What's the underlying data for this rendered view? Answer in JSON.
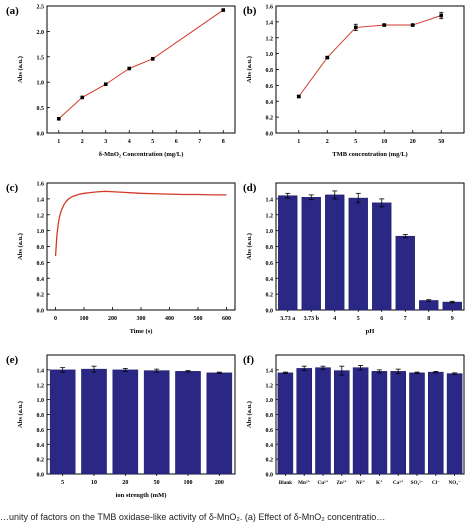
{
  "caption": "…unity of factors on the TMB oxidase-like activity of δ-MnO₂. (a) Effect of δ-MnO₂ concentratio…",
  "colors": {
    "line": "#d23b2a",
    "bar": "#2a2785",
    "axis": "#000000",
    "err": "#000000"
  },
  "chart_data": [
    {
      "panel": "(a)",
      "type": "line",
      "x": [
        1,
        2,
        3,
        4,
        5,
        8
      ],
      "values": [
        0.28,
        0.7,
        0.96,
        1.27,
        1.46,
        2.42
      ],
      "xlabel": "δ-MnO₂ Concentration (mg/L)",
      "ylabel": "Abs (a.u.)",
      "xticks": [
        "1",
        "2",
        "3",
        "4",
        "5",
        "6",
        "7",
        "8"
      ],
      "yticks": [
        "0.0",
        "0.5",
        "1.0",
        "1.5",
        "2.0",
        "2.5"
      ],
      "xlim": [
        0.5,
        8.5
      ],
      "ylim": [
        0,
        2.5
      ]
    },
    {
      "panel": "(b)",
      "type": "line",
      "categories": [
        "1",
        "2",
        "5",
        "10",
        "20",
        "50"
      ],
      "values": [
        0.46,
        0.95,
        1.33,
        1.36,
        1.36,
        1.48
      ],
      "errors": [
        0.01,
        0.01,
        0.04,
        0.01,
        0.01,
        0.04
      ],
      "xlabel": "TMB concentration (mg/L)",
      "ylabel": "Abs (a.u.)",
      "yticks": [
        "0.0",
        "0.2",
        "0.4",
        "0.6",
        "0.8",
        "1.0",
        "1.2",
        "1.4",
        "1.6"
      ],
      "ylim": [
        0,
        1.6
      ]
    },
    {
      "panel": "(c)",
      "type": "line",
      "xlabel": "Time (s)",
      "ylabel": "Abs (a.u.)",
      "xticks": [
        "0",
        "100",
        "200",
        "300",
        "400",
        "500",
        "600"
      ],
      "yticks": [
        "0.0",
        "0.2",
        "0.4",
        "0.6",
        "0.8",
        "1.0",
        "1.2",
        "1.4",
        "1.6"
      ],
      "xlim": [
        -30,
        630
      ],
      "ylim": [
        0,
        1.6
      ],
      "x": [
        0,
        5,
        10,
        15,
        20,
        30,
        40,
        50,
        60,
        80,
        100,
        125,
        150,
        175,
        200,
        250,
        300,
        350,
        400,
        450,
        500,
        550,
        600
      ],
      "values": [
        0.68,
        0.95,
        1.1,
        1.19,
        1.25,
        1.33,
        1.38,
        1.41,
        1.43,
        1.455,
        1.47,
        1.48,
        1.49,
        1.495,
        1.49,
        1.48,
        1.47,
        1.465,
        1.46,
        1.455,
        1.455,
        1.45,
        1.45
      ]
    },
    {
      "panel": "(d)",
      "type": "bar",
      "categories": [
        "3.73 a",
        "3.73 b",
        "4",
        "5",
        "6",
        "7",
        "8",
        "9"
      ],
      "values": [
        1.44,
        1.42,
        1.45,
        1.41,
        1.35,
        0.93,
        0.12,
        0.1
      ],
      "errors": [
        0.03,
        0.03,
        0.05,
        0.06,
        0.05,
        0.02,
        0.01,
        0.01
      ],
      "xlabel": "pH",
      "ylabel": "Abs (a.u.)",
      "yticks": [
        "0.0",
        "0.2",
        "0.4",
        "0.6",
        "0.8",
        "1.0",
        "1.2",
        "1.4"
      ],
      "ylim": [
        0,
        1.6
      ]
    },
    {
      "panel": "(e)",
      "type": "bar",
      "categories": [
        "5",
        "10",
        "20",
        "50",
        "100",
        "200"
      ],
      "values": [
        1.4,
        1.41,
        1.4,
        1.39,
        1.38,
        1.36
      ],
      "errors": [
        0.03,
        0.04,
        0.02,
        0.02,
        0.01,
        0.01
      ],
      "xlabel": "ion strength (mM)",
      "ylabel": "Abs (a.u.)",
      "yticks": [
        "0.0",
        "0.2",
        "0.4",
        "0.6",
        "0.8",
        "1.0",
        "1.2",
        "1.4"
      ],
      "ylim": [
        0,
        1.6
      ]
    },
    {
      "panel": "(f)",
      "type": "bar",
      "categories": [
        "Blank",
        "Mn²⁺",
        "Cu²⁺",
        "Zn²⁺",
        "Ni²⁺",
        "K⁺",
        "Ca²⁺",
        "SO₄²⁻",
        "Cl⁻",
        "NO₃⁻"
      ],
      "values": [
        1.36,
        1.42,
        1.43,
        1.39,
        1.43,
        1.38,
        1.38,
        1.36,
        1.37,
        1.35
      ],
      "errors": [
        0.01,
        0.03,
        0.02,
        0.06,
        0.03,
        0.02,
        0.03,
        0.01,
        0.01,
        0.01
      ],
      "xlabel": "",
      "ylabel": "Abs (a.u.)",
      "yticks": [
        "0.0",
        "0.2",
        "0.4",
        "0.6",
        "0.8",
        "1.0",
        "1.2",
        "1.4"
      ],
      "ylim": [
        0,
        1.6
      ]
    }
  ]
}
